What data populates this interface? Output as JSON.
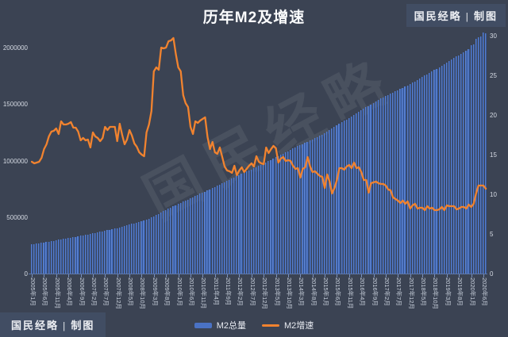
{
  "title": "历年M2及增速",
  "badge_top_right": {
    "text": "国民经略 | 制图"
  },
  "badge_bottom_left": {
    "text": "国民经略 | 制图"
  },
  "watermark": "国民经略",
  "colors": {
    "background": "#3b4353",
    "bar": "#4a72c4",
    "line": "#f1832f",
    "axis": "#5d76a8",
    "badge_bg": "#414d63",
    "text": "#e7eaf0"
  },
  "legend": [
    {
      "label": "M2总量",
      "type": "bar",
      "color": "#4a72c4"
    },
    {
      "label": "M2增速",
      "type": "line",
      "color": "#f1832f"
    }
  ],
  "chart_data": {
    "type": "combo",
    "title": "历年M2及增速",
    "frequency": "monthly",
    "x_start": "2005-01",
    "x_end": "2020-07",
    "grid": false,
    "legend_position": "bottom",
    "x_tick_labels": [
      "2005年1月",
      "2005年6月",
      "2005年11月",
      "2006年4月",
      "2006年9月",
      "2007年2月",
      "2007年7月",
      "2007年12月",
      "2008年5月",
      "2008年10月",
      "2009年3月",
      "2009年8月",
      "2010年1月",
      "2010年6月",
      "2010年11月",
      "2011年4月",
      "2011年9月",
      "2012年2月",
      "2012年7月",
      "2012年12月",
      "2013年5月",
      "2013年10月",
      "2014年3月",
      "2014年8月",
      "2015年1月",
      "2015年6月",
      "2015年11月",
      "2016年4月",
      "2016年9月",
      "2017年2月",
      "2017年7月",
      "2017年12月",
      "2018年5月",
      "2018年10月",
      "2019年3月",
      "2019年8月",
      "2020年1月",
      "2020年6月"
    ],
    "x_tick_every": 5,
    "left_axis": {
      "ticks": [
        0,
        500000,
        1000000,
        1500000,
        2000000
      ],
      "range": [
        0,
        2105000
      ]
    },
    "right_axis": {
      "ticks": [
        0,
        5,
        10,
        15,
        20,
        25,
        30
      ],
      "range": [
        0,
        30
      ]
    },
    "series": [
      {
        "name": "M2总量",
        "type": "bar",
        "axis": "left",
        "values": [
          257000,
          260800,
          264600,
          268400,
          272200,
          276000,
          279800,
          283600,
          287400,
          291200,
          295000,
          298800,
          302700,
          306600,
          310500,
          314400,
          318300,
          322200,
          326100,
          330000,
          333900,
          337800,
          341700,
          345600,
          350400,
          355200,
          360100,
          364900,
          369700,
          374500,
          379300,
          384100,
          389000,
          393800,
          398600,
          403400,
          409400,
          415400,
          421400,
          427300,
          433300,
          439300,
          445300,
          451300,
          457200,
          463200,
          469200,
          475200,
          486100,
          497000,
          508000,
          518900,
          529800,
          540700,
          551600,
          562500,
          573500,
          584400,
          595300,
          606200,
          616200,
          626200,
          636100,
          646100,
          656100,
          666100,
          676000,
          686000,
          696000,
          706000,
          715900,
          725900,
          736400,
          746900,
          757300,
          767800,
          778300,
          788800,
          799200,
          809700,
          820200,
          830700,
          841100,
          851600,
          861800,
          872000,
          882300,
          892500,
          902700,
          912900,
          923100,
          933300,
          943600,
          953800,
          964000,
          974200,
          985200,
          996300,
          1007300,
          1018300,
          1029300,
          1040400,
          1051400,
          1062400,
          1073400,
          1084500,
          1095500,
          1106500,
          1116700,
          1126800,
          1137000,
          1147100,
          1157300,
          1167400,
          1177600,
          1187800,
          1197900,
          1208100,
          1218200,
          1228400,
          1242100,
          1255700,
          1269400,
          1283000,
          1296700,
          1310400,
          1324000,
          1337700,
          1351300,
          1365000,
          1378600,
          1392300,
          1405500,
          1418600,
          1431800,
          1444900,
          1458100,
          1471200,
          1484400,
          1497500,
          1510700,
          1523800,
          1537000,
          1550100,
          1560700,
          1571200,
          1581800,
          1592300,
          1602900,
          1613500,
          1624000,
          1634600,
          1645100,
          1655700,
          1666200,
          1676800,
          1689300,
          1701800,
          1714300,
          1726800,
          1739300,
          1751800,
          1764200,
          1776700,
          1789200,
          1801700,
          1814200,
          1826700,
          1840000,
          1853300,
          1866700,
          1880000,
          1893300,
          1906600,
          1919900,
          1933300,
          1946600,
          1959900,
          1973200,
          1986500,
          2023100,
          2030800,
          2080900,
          2093500,
          2100200,
          2134900,
          2125500
        ]
      },
      {
        "name": "M2增速",
        "type": "line",
        "axis": "right",
        "values": [
          14.1,
          13.9,
          14.0,
          14.1,
          14.6,
          15.7,
          16.3,
          17.3,
          17.9,
          18.0,
          18.3,
          17.6,
          19.2,
          18.8,
          18.8,
          18.9,
          19.1,
          18.4,
          18.4,
          17.9,
          16.8,
          17.1,
          16.8,
          16.9,
          15.9,
          17.8,
          17.3,
          17.1,
          16.7,
          17.1,
          18.5,
          18.1,
          18.5,
          18.5,
          18.5,
          16.7,
          18.9,
          17.5,
          16.3,
          16.9,
          18.1,
          17.4,
          16.4,
          16.0,
          15.3,
          15.0,
          14.8,
          17.8,
          18.8,
          20.5,
          25.5,
          26.0,
          25.7,
          28.5,
          28.4,
          28.5,
          29.3,
          29.4,
          29.7,
          27.7,
          26.0,
          25.5,
          22.5,
          21.5,
          21.0,
          18.5,
          17.6,
          19.2,
          19.0,
          19.3,
          19.5,
          19.7,
          17.2,
          15.7,
          16.6,
          15.3,
          15.1,
          15.9,
          14.7,
          13.5,
          13.0,
          12.9,
          12.7,
          13.6,
          12.4,
          13.0,
          13.4,
          12.8,
          13.2,
          13.6,
          13.9,
          13.5,
          14.8,
          14.1,
          13.9,
          13.8,
          15.9,
          15.2,
          15.7,
          16.1,
          15.8,
          14.0,
          14.5,
          14.7,
          14.2,
          14.3,
          14.2,
          13.6,
          13.2,
          13.3,
          12.1,
          13.2,
          13.4,
          14.7,
          13.5,
          12.8,
          12.9,
          12.6,
          12.3,
          12.2,
          10.8,
          12.5,
          11.6,
          10.1,
          10.8,
          11.8,
          13.3,
          13.3,
          13.1,
          13.5,
          13.7,
          13.3,
          14.0,
          13.3,
          13.4,
          12.8,
          11.8,
          11.8,
          10.2,
          11.4,
          11.5,
          11.6,
          11.4,
          11.3,
          11.3,
          11.1,
          10.6,
          10.5,
          9.6,
          9.4,
          9.2,
          8.9,
          9.2,
          8.8,
          9.1,
          8.2,
          8.6,
          8.8,
          8.2,
          8.3,
          8.3,
          8.0,
          8.5,
          8.2,
          8.3,
          8.0,
          8.0,
          8.1,
          8.4,
          8.0,
          8.6,
          8.5,
          8.5,
          8.5,
          8.1,
          8.2,
          8.4,
          8.4,
          8.2,
          8.7,
          8.4,
          8.8,
          10.1,
          11.1,
          11.1,
          11.1,
          10.7
        ]
      }
    ]
  }
}
